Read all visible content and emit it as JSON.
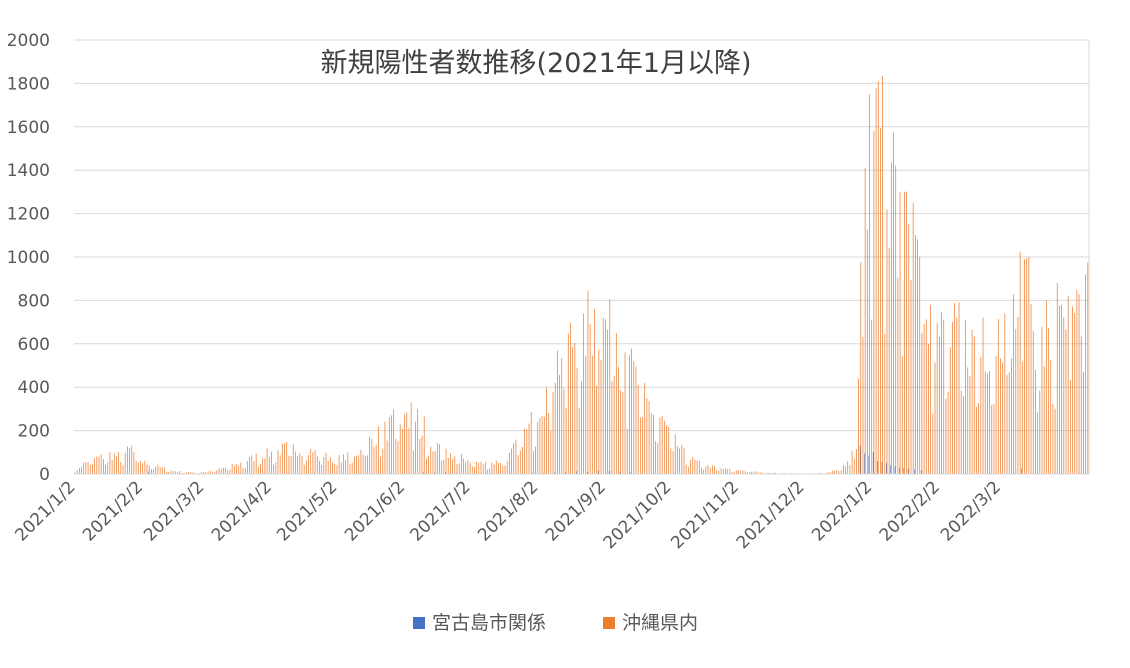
{
  "chart_data": {
    "type": "bar",
    "title": "新規陽性者数推移(2021年1月以降)",
    "xlabel": "",
    "ylabel": "",
    "ylim": [
      0,
      2000
    ],
    "yticks": [
      "0",
      "200",
      "400",
      "600",
      "800",
      "1000",
      "1200",
      "1400",
      "1600",
      "1800",
      "2000"
    ],
    "x_tick_labels": [
      "2021/1/2",
      "2021/2/2",
      "2021/3/2",
      "2021/4/2",
      "2021/5/2",
      "2021/6/2",
      "2021/7/2",
      "2021/8/2",
      "2021/9/2",
      "2021/10/2",
      "2021/11/2",
      "2021/12/2",
      "2022/1/2",
      "2022/2/2",
      "2022/3/2"
    ],
    "grid": true,
    "legend_position": "bottom",
    "colors": {
      "miyako": "#4472c4",
      "okinawa": "#ed7d31"
    },
    "series": [
      {
        "name": "宮古島市関係",
        "sparse_values": [
          [
            14,
            5
          ],
          [
            34,
            10
          ],
          [
            45,
            3
          ],
          [
            110,
            4
          ],
          [
            130,
            3
          ],
          [
            145,
            4
          ],
          [
            160,
            8
          ],
          [
            165,
            6
          ],
          [
            170,
            10
          ],
          [
            175,
            5
          ],
          [
            180,
            3
          ],
          [
            205,
            4
          ],
          [
            210,
            6
          ],
          [
            215,
            5
          ],
          [
            220,
            8
          ],
          [
            225,
            10
          ],
          [
            230,
            12
          ],
          [
            235,
            10
          ],
          [
            240,
            15
          ],
          [
            245,
            12
          ],
          [
            250,
            10
          ],
          [
            255,
            8
          ],
          [
            260,
            5
          ],
          [
            265,
            4
          ],
          [
            270,
            3
          ],
          [
            275,
            5
          ],
          [
            280,
            3
          ],
          [
            390,
            2
          ],
          [
            400,
            2
          ],
          [
            410,
            2
          ],
          [
            420,
            3
          ],
          [
            425,
            4
          ],
          [
            430,
            3
          ],
          [
            440,
            2
          ],
          [
            450,
            2
          ],
          [
            460,
            3
          ],
          [
            470,
            2
          ],
          [
            480,
            2
          ]
        ],
        "peaks": [
          [
            360,
            130
          ],
          [
            362,
            95
          ],
          [
            364,
            85
          ],
          [
            366,
            100
          ],
          [
            368,
            60
          ],
          [
            370,
            55
          ],
          [
            372,
            50
          ],
          [
            374,
            40
          ],
          [
            376,
            35
          ],
          [
            378,
            30
          ],
          [
            380,
            28
          ],
          [
            382,
            25
          ],
          [
            385,
            20
          ],
          [
            388,
            18
          ],
          [
            434,
            25
          ]
        ]
      },
      {
        "name": "沖縄県内",
        "knots": [
          [
            0,
            20
          ],
          [
            7,
            75
          ],
          [
            12,
            85
          ],
          [
            16,
            100
          ],
          [
            20,
            90
          ],
          [
            25,
            120
          ],
          [
            28,
            100
          ],
          [
            31,
            60
          ],
          [
            35,
            50
          ],
          [
            40,
            30
          ],
          [
            45,
            15
          ],
          [
            50,
            10
          ],
          [
            55,
            8
          ],
          [
            60,
            12
          ],
          [
            65,
            20
          ],
          [
            70,
            35
          ],
          [
            75,
            50
          ],
          [
            80,
            75
          ],
          [
            86,
            100
          ],
          [
            92,
            110
          ],
          [
            98,
            140
          ],
          [
            104,
            120
          ],
          [
            110,
            110
          ],
          [
            115,
            90
          ],
          [
            120,
            75
          ],
          [
            126,
            90
          ],
          [
            131,
            120
          ],
          [
            136,
            180
          ],
          [
            141,
            210
          ],
          [
            146,
            260
          ],
          [
            151,
            270
          ],
          [
            156,
            220
          ],
          [
            161,
            160
          ],
          [
            166,
            125
          ],
          [
            171,
            100
          ],
          [
            176,
            85
          ],
          [
            181,
            70
          ],
          [
            186,
            55
          ],
          [
            190,
            55
          ],
          [
            195,
            65
          ],
          [
            199,
            95
          ],
          [
            203,
            160
          ],
          [
            208,
            230
          ],
          [
            212,
            350
          ],
          [
            216,
            420
          ],
          [
            220,
            560
          ],
          [
            225,
            640
          ],
          [
            230,
            720
          ],
          [
            235,
            760
          ],
          [
            240,
            780
          ],
          [
            245,
            700
          ],
          [
            250,
            590
          ],
          [
            255,
            520
          ],
          [
            260,
            420
          ],
          [
            265,
            320
          ],
          [
            270,
            250
          ],
          [
            275,
            160
          ],
          [
            280,
            90
          ],
          [
            285,
            60
          ],
          [
            290,
            40
          ],
          [
            295,
            30
          ],
          [
            300,
            22
          ],
          [
            305,
            18
          ],
          [
            310,
            12
          ],
          [
            315,
            9
          ],
          [
            320,
            6
          ],
          [
            325,
            4
          ],
          [
            330,
            3
          ],
          [
            335,
            2
          ],
          [
            340,
            3
          ],
          [
            345,
            10
          ],
          [
            350,
            25
          ],
          [
            355,
            60
          ],
          [
            358,
            200
          ],
          [
            360,
            700
          ],
          [
            362,
            1100
          ],
          [
            364,
            1400
          ],
          [
            366,
            1600
          ],
          [
            368,
            1800
          ],
          [
            370,
            1700
          ],
          [
            372,
            1450
          ],
          [
            375,
            1400
          ],
          [
            378,
            1300
          ],
          [
            381,
            1200
          ],
          [
            384,
            1100
          ],
          [
            387,
            950
          ],
          [
            390,
            800
          ],
          [
            395,
            720
          ],
          [
            400,
            690
          ],
          [
            405,
            700
          ],
          [
            410,
            660
          ],
          [
            415,
            640
          ],
          [
            420,
            700
          ],
          [
            425,
            760
          ],
          [
            430,
            800
          ],
          [
            434,
            900
          ],
          [
            437,
            850
          ],
          [
            440,
            720
          ],
          [
            445,
            620
          ],
          [
            450,
            700
          ],
          [
            455,
            750
          ],
          [
            458,
            720
          ],
          [
            461,
            800
          ],
          [
            463,
            900
          ]
        ],
        "peaks": [
          [
            360,
            975
          ],
          [
            362,
            1410
          ],
          [
            364,
            1750
          ],
          [
            366,
            1580
          ],
          [
            368,
            1810
          ],
          [
            369,
            1595
          ],
          [
            372,
            1220
          ],
          [
            374,
            1435
          ],
          [
            376,
            1420
          ],
          [
            378,
            1300
          ],
          [
            380,
            1300
          ],
          [
            382,
            1150
          ],
          [
            384,
            1250
          ],
          [
            385,
            1100
          ],
          [
            386,
            1080
          ],
          [
            387,
            1000
          ],
          [
            392,
            780
          ],
          [
            402,
            700
          ],
          [
            416,
            720
          ],
          [
            426,
            740
          ],
          [
            433,
            1025
          ],
          [
            435,
            990
          ],
          [
            437,
            1000
          ],
          [
            445,
            800
          ],
          [
            450,
            880
          ],
          [
            455,
            820
          ],
          [
            460,
            830
          ],
          [
            463,
            920
          ],
          [
            464,
            975
          ],
          [
            233,
            740
          ],
          [
            238,
            760
          ],
          [
            242,
            720
          ],
          [
            245,
            805
          ],
          [
            248,
            650
          ],
          [
            252,
            560
          ],
          [
            254,
            550
          ],
          [
            258,
            410
          ],
          [
            262,
            350
          ],
          [
            154,
            330
          ],
          [
            157,
            300
          ],
          [
            160,
            265
          ],
          [
            26,
            130
          ]
        ]
      }
    ]
  }
}
